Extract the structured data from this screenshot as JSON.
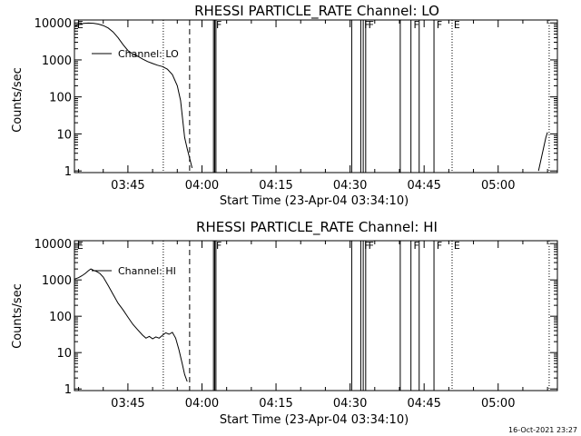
{
  "footer": {
    "timestamp": "16-Oct-2021 23:27"
  },
  "chart_data": [
    {
      "type": "line",
      "title": "RHESSI PARTICLE_RATE Channel: LO",
      "xlabel": "Start Time (23-Apr-04 03:34:10)",
      "ylabel": "Counts/sec",
      "y_scale": "log",
      "ylim": [
        0.9,
        12000
      ],
      "xlim": [
        "03:34:10",
        "05:12:00"
      ],
      "x_ticks": [
        "03:45",
        "04:00",
        "04:15",
        "04:30",
        "04:45",
        "05:00"
      ],
      "y_ticks": [
        "1",
        "10",
        "100",
        "1000",
        "10000"
      ],
      "grid": false,
      "legend": {
        "position": "top-left",
        "entries": [
          "Channel: LO"
        ]
      },
      "series": [
        {
          "name": "Channel: LO",
          "segments": [
            [
              [
                "03:34:10",
                8000
              ],
              [
                "03:35:00",
                9000
              ],
              [
                "03:36:00",
                9700
              ],
              [
                "03:37:00",
                9900
              ],
              [
                "03:38:00",
                9800
              ],
              [
                "03:39:00",
                9300
              ],
              [
                "03:40:00",
                8500
              ],
              [
                "03:41:00",
                7300
              ],
              [
                "03:42:00",
                5700
              ],
              [
                "03:43:00",
                4000
              ],
              [
                "03:44:00",
                2600
              ],
              [
                "03:45:00",
                1800
              ],
              [
                "03:46:00",
                1450
              ],
              [
                "03:47:00",
                1250
              ],
              [
                "03:48:00",
                1050
              ],
              [
                "03:49:00",
                900
              ],
              [
                "03:50:00",
                800
              ],
              [
                "03:51:00",
                720
              ],
              [
                "03:52:00",
                660
              ],
              [
                "03:53:00",
                560
              ],
              [
                "03:54:00",
                400
              ],
              [
                "03:55:00",
                200
              ],
              [
                "03:55:40",
                80
              ],
              [
                "03:56:10",
                20
              ],
              [
                "03:56:30",
                8
              ],
              [
                "03:57:00",
                4
              ],
              [
                "03:57:30",
                2.2
              ],
              [
                "03:58:00",
                1.2
              ]
            ],
            [
              [
                "05:08:10",
                1.0
              ],
              [
                "05:08:40",
                2.0
              ],
              [
                "05:09:10",
                4.0
              ],
              [
                "05:09:40",
                8.0
              ],
              [
                "05:10:00",
                11.0
              ]
            ]
          ]
        }
      ],
      "annotations": {
        "dotted_lines": [
          "03:52:10",
          "04:50:40",
          "05:10:20"
        ],
        "dashed_lines": [
          "03:57:30"
        ],
        "solid_lines": [
          "04:02:20",
          "04:02:35",
          "04:02:50",
          "04:30:20",
          "04:32:10",
          "04:32:40",
          "04:33:10",
          "04:40:10",
          "04:42:20",
          "04:44:00",
          "04:47:00"
        ],
        "flags": [
          {
            "time": "03:34:30",
            "label": "E"
          },
          {
            "time": "04:02:40",
            "label": "F"
          },
          {
            "time": "04:32:40",
            "label": "F"
          },
          {
            "time": "04:33:30",
            "label": "F"
          },
          {
            "time": "04:42:40",
            "label": "F"
          },
          {
            "time": "04:47:20",
            "label": "F"
          },
          {
            "time": "04:50:50",
            "label": "E"
          }
        ]
      }
    },
    {
      "type": "line",
      "title": "RHESSI PARTICLE_RATE Channel: HI",
      "xlabel": "Start Time (23-Apr-04 03:34:10)",
      "ylabel": "Counts/sec",
      "y_scale": "log",
      "ylim": [
        0.9,
        12000
      ],
      "xlim": [
        "03:34:10",
        "05:12:00"
      ],
      "x_ticks": [
        "03:45",
        "04:00",
        "04:15",
        "04:30",
        "04:45",
        "05:00"
      ],
      "y_ticks": [
        "1",
        "10",
        "100",
        "1000",
        "10000"
      ],
      "grid": false,
      "legend": {
        "position": "top-left",
        "entries": [
          "Channel: HI"
        ]
      },
      "series": [
        {
          "name": "Channel: HI",
          "segments": [
            [
              [
                "03:34:10",
                1050
              ],
              [
                "03:35:00",
                1150
              ],
              [
                "03:35:40",
                1300
              ],
              [
                "03:36:20",
                1500
              ],
              [
                "03:37:00",
                1800
              ],
              [
                "03:37:30",
                2000
              ],
              [
                "03:38:00",
                1850
              ],
              [
                "03:38:40",
                1700
              ],
              [
                "03:39:20",
                1500
              ],
              [
                "03:40:00",
                1200
              ],
              [
                "03:41:00",
                700
              ],
              [
                "03:42:00",
                400
              ],
              [
                "03:43:00",
                230
              ],
              [
                "03:44:00",
                150
              ],
              [
                "03:45:00",
                95
              ],
              [
                "03:46:00",
                60
              ],
              [
                "03:47:00",
                42
              ],
              [
                "03:48:00",
                30
              ],
              [
                "03:48:40",
                25
              ],
              [
                "03:49:20",
                28
              ],
              [
                "03:50:00",
                24
              ],
              [
                "03:50:40",
                27
              ],
              [
                "03:51:20",
                25
              ],
              [
                "03:52:00",
                30
              ],
              [
                "03:52:40",
                35
              ],
              [
                "03:53:20",
                32
              ],
              [
                "03:54:00",
                36
              ],
              [
                "03:54:40",
                25
              ],
              [
                "03:55:20",
                12
              ],
              [
                "03:56:00",
                5
              ],
              [
                "03:56:30",
                2.5
              ],
              [
                "03:57:00",
                1.6
              ]
            ]
          ]
        }
      ],
      "annotations": {
        "dotted_lines": [
          "03:52:10",
          "04:50:40",
          "05:10:20"
        ],
        "dashed_lines": [
          "03:57:30"
        ],
        "solid_lines": [
          "04:02:20",
          "04:02:35",
          "04:02:50",
          "04:30:20",
          "04:32:10",
          "04:32:40",
          "04:33:10",
          "04:40:10",
          "04:42:20",
          "04:44:00",
          "04:47:00"
        ],
        "flags": [
          {
            "time": "03:34:30",
            "label": "E"
          },
          {
            "time": "04:02:40",
            "label": "F"
          },
          {
            "time": "04:32:40",
            "label": "F"
          },
          {
            "time": "04:33:30",
            "label": "F"
          },
          {
            "time": "04:42:40",
            "label": "F"
          },
          {
            "time": "04:47:20",
            "label": "F"
          },
          {
            "time": "04:50:50",
            "label": "E"
          }
        ]
      }
    }
  ]
}
